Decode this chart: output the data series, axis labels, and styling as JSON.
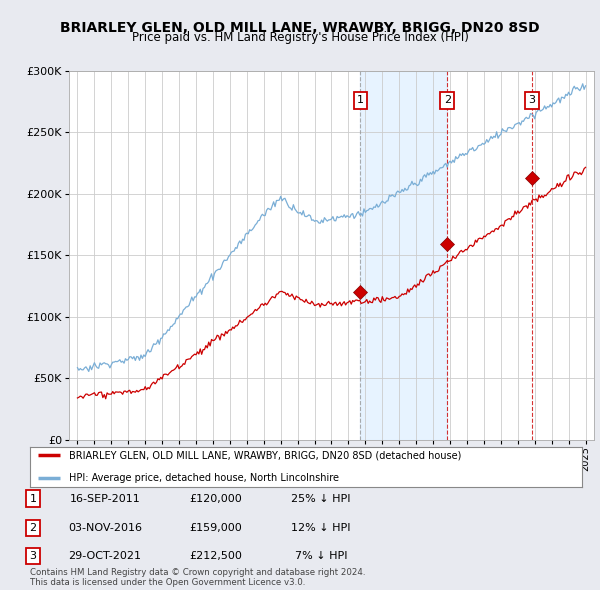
{
  "title": "BRIARLEY GLEN, OLD MILL LANE, WRAWBY, BRIGG, DN20 8SD",
  "subtitle": "Price paid vs. HM Land Registry's House Price Index (HPI)",
  "title_fontsize": 10,
  "subtitle_fontsize": 8.5,
  "bg_color": "#e8eaf0",
  "plot_bg_color": "#ffffff",
  "red_color": "#cc0000",
  "blue_color": "#7aaed6",
  "vline_color_grey": "#999999",
  "vline_color_red": "#cc0000",
  "shade_color": "#ddeeff",
  "ylim": [
    0,
    300000
  ],
  "yticks": [
    0,
    50000,
    100000,
    150000,
    200000,
    250000,
    300000
  ],
  "ytick_labels": [
    "£0",
    "£50K",
    "£100K",
    "£150K",
    "£200K",
    "£250K",
    "£300K"
  ],
  "sales": [
    {
      "num": 1,
      "date": "16-SEP-2011",
      "price": 120000,
      "pct": "25% ↓ HPI",
      "x_year": 2011.71
    },
    {
      "num": 2,
      "date": "03-NOV-2016",
      "price": 159000,
      "pct": "12% ↓ HPI",
      "x_year": 2016.84
    },
    {
      "num": 3,
      "date": "29-OCT-2021",
      "price": 212500,
      "pct": "7% ↓ HPI",
      "x_year": 2021.83
    }
  ],
  "legend_line1": "BRIARLEY GLEN, OLD MILL LANE, WRAWBY, BRIGG, DN20 8SD (detached house)",
  "legend_line2": "HPI: Average price, detached house, North Lincolnshire",
  "footer": "Contains HM Land Registry data © Crown copyright and database right 2024.\nThis data is licensed under the Open Government Licence v3.0.",
  "xmin": 1994.5,
  "xmax": 2025.5
}
